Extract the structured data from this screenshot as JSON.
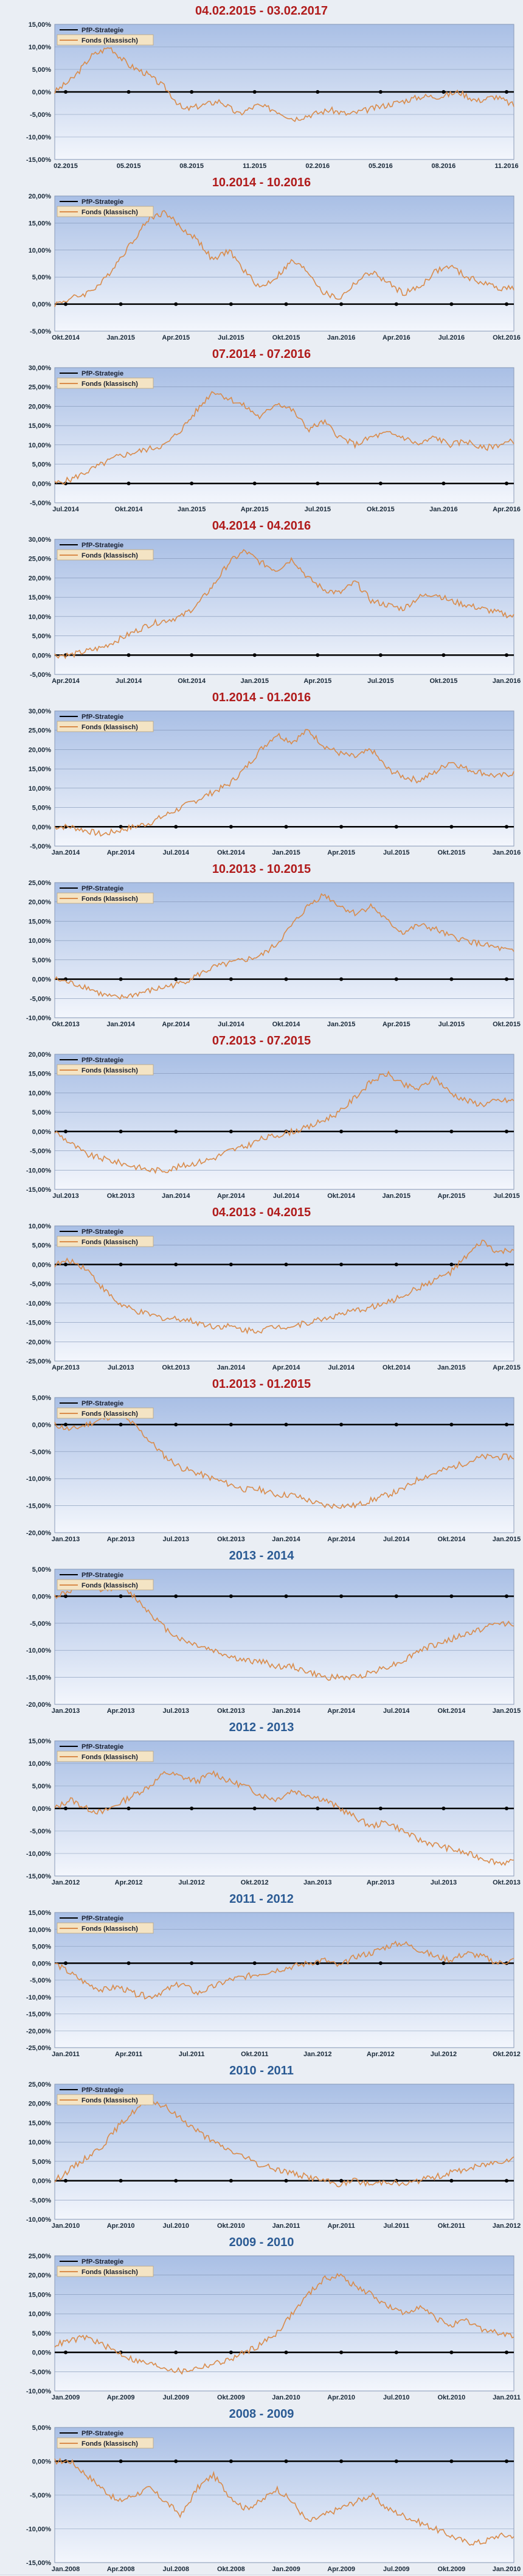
{
  "colors": {
    "title_red": "#b01b1b",
    "title_blue": "#2b5b94",
    "fonds_line": "#d98b4a",
    "strategy_line": "#000000",
    "plot_top": "#a9bfe5",
    "plot_bottom": "#f3f6fc"
  },
  "legend": {
    "strategy": "PfP-Strategie",
    "fonds": "Fonds (klassisch)"
  },
  "chart_data": [
    {
      "type": "line",
      "title": "04.02.2015 - 03.02.2017",
      "title_color": "red",
      "x_ticks": [
        "02.2015",
        "05.2015",
        "08.2015",
        "11.2015",
        "02.2016",
        "05.2016",
        "08.2016",
        "11.2016"
      ],
      "y_ticks": [
        "15,00%",
        "10,00%",
        "5,00%",
        "0,00%",
        "-5,00%",
        "-10,00%",
        "-15,00%"
      ],
      "ylim": [
        -15,
        15
      ],
      "series": [
        {
          "name": "Fonds (klassisch)",
          "values": [
            0,
            3,
            8,
            10,
            6,
            4,
            1,
            -4,
            -3,
            -2,
            -5,
            -3,
            -4,
            -6,
            -5,
            -4,
            -5,
            -4,
            -3,
            -2,
            -1,
            -1,
            0,
            -2,
            -1,
            -3
          ]
        },
        {
          "name": "PfP-Strategie",
          "values": [
            0
          ]
        }
      ]
    },
    {
      "type": "line",
      "title": "10.2014 - 10.2016",
      "title_color": "red",
      "x_ticks": [
        "Okt.2014",
        "Jan.2015",
        "Apr.2015",
        "Jul.2015",
        "Okt.2015",
        "Jan.2016",
        "Apr.2016",
        "Jul.2016",
        "Okt.2016"
      ],
      "y_ticks": [
        "20,00%",
        "15,00%",
        "10,00%",
        "5,00%",
        "0,00%",
        "-5,00%"
      ],
      "ylim": [
        -5,
        20
      ],
      "series": [
        {
          "name": "Fonds (klassisch)",
          "values": [
            0,
            1,
            2,
            4,
            8,
            12,
            16,
            17,
            14,
            12,
            8,
            10,
            6,
            3,
            5,
            8,
            6,
            2,
            1,
            4,
            6,
            4,
            2,
            3,
            6,
            7,
            5,
            4,
            3,
            3
          ]
        },
        {
          "name": "PfP-Strategie",
          "values": [
            0
          ]
        }
      ]
    },
    {
      "type": "line",
      "title": "07.2014 - 07.2016",
      "title_color": "red",
      "x_ticks": [
        "Jul.2014",
        "Okt.2014",
        "Jan.2015",
        "Apr.2015",
        "Jul.2015",
        "Okt.2015",
        "Jan.2016",
        "Apr.2016"
      ],
      "y_ticks": [
        "30,00%",
        "25,00%",
        "20,00%",
        "15,00%",
        "10,00%",
        "5,00%",
        "0,00%",
        "-5,00%"
      ],
      "ylim": [
        -5,
        30
      ],
      "series": [
        {
          "name": "Fonds (klassisch)",
          "values": [
            0,
            1,
            3,
            5,
            7,
            8,
            9,
            10,
            14,
            19,
            24,
            22,
            20,
            17,
            21,
            19,
            14,
            16,
            12,
            10,
            12,
            13,
            12,
            10,
            12,
            10,
            11,
            9,
            10,
            11
          ]
        },
        {
          "name": "PfP-Strategie",
          "values": [
            0
          ]
        }
      ]
    },
    {
      "type": "line",
      "title": "04.2014 - 04.2016",
      "title_color": "red",
      "x_ticks": [
        "Apr.2014",
        "Jul.2014",
        "Okt.2014",
        "Jan.2015",
        "Apr.2015",
        "Jul.2015",
        "Okt.2015",
        "Jan.2016"
      ],
      "y_ticks": [
        "30,00%",
        "25,00%",
        "20,00%",
        "15,00%",
        "10,00%",
        "5,00%",
        "0,00%",
        "-5,00%"
      ],
      "ylim": [
        -5,
        30
      ],
      "series": [
        {
          "name": "Fonds (klassisch)",
          "values": [
            0,
            0,
            1,
            2,
            4,
            6,
            8,
            9,
            10,
            13,
            18,
            24,
            27,
            24,
            22,
            25,
            20,
            17,
            16,
            19,
            14,
            13,
            12,
            15,
            16,
            14,
            13,
            12,
            11,
            10
          ]
        },
        {
          "name": "PfP-Strategie",
          "values": [
            0
          ]
        }
      ]
    },
    {
      "type": "line",
      "title": "01.2014 - 01.2016",
      "title_color": "red",
      "x_ticks": [
        "Jan.2014",
        "Apr.2014",
        "Jul.2014",
        "Okt.2014",
        "Jan.2015",
        "Apr.2015",
        "Jul.2015",
        "Okt.2015",
        "Jan.2016"
      ],
      "y_ticks": [
        "30,00%",
        "25,00%",
        "20,00%",
        "15,00%",
        "10,00%",
        "5,00%",
        "0,00%",
        "-5,00%"
      ],
      "ylim": [
        -5,
        30
      ],
      "series": [
        {
          "name": "Fonds (klassisch)",
          "values": [
            0,
            0,
            -1,
            -2,
            -1,
            0,
            1,
            3,
            5,
            7,
            9,
            11,
            15,
            20,
            24,
            22,
            25,
            21,
            19,
            18,
            20,
            15,
            13,
            12,
            14,
            17,
            15,
            14,
            13,
            14
          ]
        },
        {
          "name": "PfP-Strategie",
          "values": [
            0
          ]
        }
      ]
    },
    {
      "type": "line",
      "title": "10.2013 - 10.2015",
      "title_color": "red",
      "x_ticks": [
        "Okt.2013",
        "Jan.2014",
        "Apr.2014",
        "Jul.2014",
        "Okt.2014",
        "Jan.2015",
        "Apr.2015",
        "Jul.2015",
        "Okt.2015"
      ],
      "y_ticks": [
        "25,00%",
        "20,00%",
        "15,00%",
        "10,00%",
        "5,00%",
        "0,00%",
        "-5,00%",
        "-10,00%"
      ],
      "ylim": [
        -10,
        25
      ],
      "series": [
        {
          "name": "Fonds (klassisch)",
          "values": [
            0,
            -1,
            -2,
            -4,
            -5,
            -4,
            -3,
            -2,
            -1,
            1,
            3,
            4,
            5,
            6,
            9,
            14,
            19,
            22,
            19,
            17,
            19,
            15,
            12,
            14,
            13,
            11,
            10,
            9,
            8,
            7
          ]
        },
        {
          "name": "PfP-Strategie",
          "values": [
            0
          ]
        }
      ]
    },
    {
      "type": "line",
      "title": "07.2013 - 07.2015",
      "title_color": "red",
      "x_ticks": [
        "Jul.2013",
        "Okt.2013",
        "Jan.2014",
        "Apr.2014",
        "Jul.2014",
        "Okt.2014",
        "Jan.2015",
        "Apr.2015",
        "Jul.2015"
      ],
      "y_ticks": [
        "20,00%",
        "15,00%",
        "10,00%",
        "5,00%",
        "0,00%",
        "-5,00%",
        "-10,00%",
        "-15,00%"
      ],
      "ylim": [
        -15,
        20
      ],
      "series": [
        {
          "name": "Fonds (klassisch)",
          "values": [
            0,
            -3,
            -6,
            -7,
            -8,
            -9,
            -10,
            -10,
            -9,
            -8,
            -7,
            -5,
            -4,
            -2,
            -1,
            0,
            1,
            3,
            5,
            9,
            13,
            15,
            12,
            11,
            14,
            10,
            8,
            7,
            8,
            8
          ]
        },
        {
          "name": "PfP-Strategie",
          "values": [
            0
          ]
        }
      ]
    },
    {
      "type": "line",
      "title": "04.2013 - 04.2015",
      "title_color": "red",
      "x_ticks": [
        "Apr.2013",
        "Jul.2013",
        "Okt.2013",
        "Jan.2014",
        "Apr.2014",
        "Jul.2014",
        "Okt.2014",
        "Jan.2015",
        "Apr.2015"
      ],
      "y_ticks": [
        "10,00%",
        "5,00%",
        "0,00%",
        "-5,00%",
        "-10,00%",
        "-15,00%",
        "-20,00%",
        "-25,00%"
      ],
      "ylim": [
        -25,
        10
      ],
      "series": [
        {
          "name": "Fonds (klassisch)",
          "values": [
            0,
            1,
            -1,
            -6,
            -10,
            -12,
            -13,
            -14,
            -14,
            -15,
            -16,
            -16,
            -17,
            -17,
            -16,
            -16,
            -15,
            -14,
            -13,
            -12,
            -11,
            -10,
            -8,
            -6,
            -4,
            -2,
            2,
            6,
            3,
            4
          ]
        },
        {
          "name": "PfP-Strategie",
          "values": [
            0
          ]
        }
      ]
    },
    {
      "type": "line",
      "title": "01.2013 - 01.2015",
      "title_color": "red",
      "x_ticks": [
        "Jan.2013",
        "Apr.2013",
        "Jul.2013",
        "Okt.2013",
        "Jan.2014",
        "Apr.2014",
        "Jul.2014",
        "Okt.2014",
        "Jan.2015"
      ],
      "y_ticks": [
        "5,00%",
        "0,00%",
        "-5,00%",
        "-10,00%",
        "-15,00%",
        "-20,00%"
      ],
      "ylim": [
        -20,
        5
      ],
      "series": [
        {
          "name": "Fonds (klassisch)",
          "values": [
            0,
            -1,
            0,
            1,
            2,
            0,
            -3,
            -6,
            -8,
            -9,
            -10,
            -11,
            -12,
            -12,
            -13,
            -13,
            -14,
            -15,
            -15,
            -15,
            -14,
            -13,
            -12,
            -10,
            -9,
            -8,
            -7,
            -6,
            -6,
            -6
          ]
        },
        {
          "name": "PfP-Strategie",
          "values": [
            0
          ]
        }
      ]
    },
    {
      "type": "line",
      "title": "2013 - 2014",
      "title_color": "blue",
      "x_ticks": [
        "Jan.2013",
        "Apr.2013",
        "Jul.2013",
        "Okt.2013",
        "Jan.2014",
        "Apr.2014",
        "Jul.2014",
        "Okt.2014",
        "Jan.2015"
      ],
      "y_ticks": [
        "5,00%",
        "0,00%",
        "-5,00%",
        "-10,00%",
        "-15,00%",
        "-20,00%"
      ],
      "ylim": [
        -20,
        5
      ],
      "series": [
        {
          "name": "Fonds (klassisch)",
          "values": [
            0,
            1,
            2,
            1,
            2,
            0,
            -3,
            -6,
            -8,
            -9,
            -10,
            -11,
            -12,
            -12,
            -13,
            -13,
            -14,
            -15,
            -15,
            -15,
            -14,
            -13,
            -12,
            -10,
            -9,
            -8,
            -7,
            -6,
            -5,
            -5
          ]
        },
        {
          "name": "PfP-Strategie",
          "values": [
            0
          ]
        }
      ]
    },
    {
      "type": "line",
      "title": "2012 - 2013",
      "title_color": "blue",
      "x_ticks": [
        "Jan.2012",
        "Apr.2012",
        "Jul.2012",
        "Okt.2012",
        "Jan.2013",
        "Apr.2013",
        "Jul.2013",
        "Okt.2013"
      ],
      "y_ticks": [
        "15,00%",
        "10,00%",
        "5,00%",
        "0,00%",
        "-5,00%",
        "-10,00%",
        "-15,00%"
      ],
      "ylim": [
        -15,
        15
      ],
      "series": [
        {
          "name": "Fonds (klassisch)",
          "values": [
            0,
            2,
            0,
            -1,
            1,
            3,
            5,
            8,
            7,
            6,
            8,
            6,
            5,
            3,
            2,
            4,
            3,
            2,
            0,
            -2,
            -4,
            -3,
            -5,
            -7,
            -8,
            -9,
            -10,
            -11,
            -12,
            -12
          ]
        },
        {
          "name": "PfP-Strategie",
          "values": [
            0
          ]
        }
      ]
    },
    {
      "type": "line",
      "title": "2011 - 2012",
      "title_color": "blue",
      "x_ticks": [
        "Jan.2011",
        "Apr.2011",
        "Jul.2011",
        "Okt.2011",
        "Jan.2012",
        "Apr.2012",
        "Jul.2012",
        "Okt.2012"
      ],
      "y_ticks": [
        "15,00%",
        "10,00%",
        "5,00%",
        "0,00%",
        "-5,00%",
        "-10,00%",
        "-15,00%",
        "-20,00%",
        "-25,00%"
      ],
      "ylim": [
        -25,
        15
      ],
      "series": [
        {
          "name": "Fonds (klassisch)",
          "values": [
            0,
            -3,
            -6,
            -8,
            -7,
            -9,
            -10,
            -8,
            -6,
            -9,
            -7,
            -5,
            -4,
            -3,
            -2,
            -1,
            0,
            1,
            -1,
            2,
            3,
            5,
            6,
            4,
            2,
            1,
            3,
            2,
            0,
            1
          ]
        },
        {
          "name": "PfP-Strategie",
          "values": [
            0
          ]
        }
      ]
    },
    {
      "type": "line",
      "title": "2010 - 2011",
      "title_color": "blue",
      "x_ticks": [
        "Jan.2010",
        "Apr.2010",
        "Jul.2010",
        "Okt.2010",
        "Jan.2011",
        "Apr.2011",
        "Jul.2011",
        "Okt.2011",
        "Jan.2012"
      ],
      "y_ticks": [
        "25,00%",
        "20,00%",
        "15,00%",
        "10,00%",
        "5,00%",
        "0,00%",
        "-5,00%",
        "-10,00%"
      ],
      "ylim": [
        -10,
        25
      ],
      "series": [
        {
          "name": "Fonds (klassisch)",
          "values": [
            0,
            3,
            6,
            9,
            14,
            18,
            21,
            19,
            16,
            13,
            10,
            8,
            6,
            4,
            3,
            2,
            1,
            0,
            -1,
            0,
            -1,
            0,
            -1,
            0,
            1,
            2,
            3,
            4,
            5,
            6
          ]
        },
        {
          "name": "PfP-Strategie",
          "values": [
            0
          ]
        }
      ]
    },
    {
      "type": "line",
      "title": "2009 - 2010",
      "title_color": "blue",
      "x_ticks": [
        "Jan.2009",
        "Apr.2009",
        "Jul.2009",
        "Okt.2009",
        "Jan.2010",
        "Apr.2010",
        "Jul.2010",
        "Okt.2010",
        "Jan.2011"
      ],
      "y_ticks": [
        "25,00%",
        "20,00%",
        "15,00%",
        "10,00%",
        "5,00%",
        "0,00%",
        "-5,00%",
        "-10,00%"
      ],
      "ylim": [
        -10,
        25
      ],
      "series": [
        {
          "name": "Fonds (klassisch)",
          "values": [
            2,
            3,
            4,
            2,
            0,
            -2,
            -3,
            -4,
            -5,
            -4,
            -3,
            -2,
            0,
            2,
            5,
            10,
            15,
            19,
            20,
            17,
            15,
            12,
            10,
            12,
            9,
            7,
            8,
            6,
            5,
            4
          ]
        },
        {
          "name": "PfP-Strategie",
          "values": [
            0
          ]
        }
      ]
    },
    {
      "type": "line",
      "title": "2008 - 2009",
      "title_color": "blue",
      "x_ticks": [
        "Jan.2008",
        "Apr.2008",
        "Jul.2008",
        "Okt.2008",
        "Jan.2009",
        "Apr.2009",
        "Jul.2009",
        "Okt.2009",
        "Jan.2010"
      ],
      "y_ticks": [
        "5,00%",
        "0,00%",
        "-5,00%",
        "-10,00%",
        "-15,00%"
      ],
      "ylim": [
        -15,
        5
      ],
      "series": [
        {
          "name": "Fonds (klassisch)",
          "values": [
            0,
            0,
            -2,
            -4,
            -6,
            -5,
            -4,
            -6,
            -8,
            -4,
            -2,
            -5,
            -7,
            -6,
            -4,
            -6,
            -9,
            -8,
            -7,
            -6,
            -5,
            -7,
            -8,
            -9,
            -10,
            -11,
            -12,
            -12,
            -11,
            -11
          ]
        },
        {
          "name": "PfP-Strategie",
          "values": [
            0
          ]
        }
      ]
    }
  ]
}
